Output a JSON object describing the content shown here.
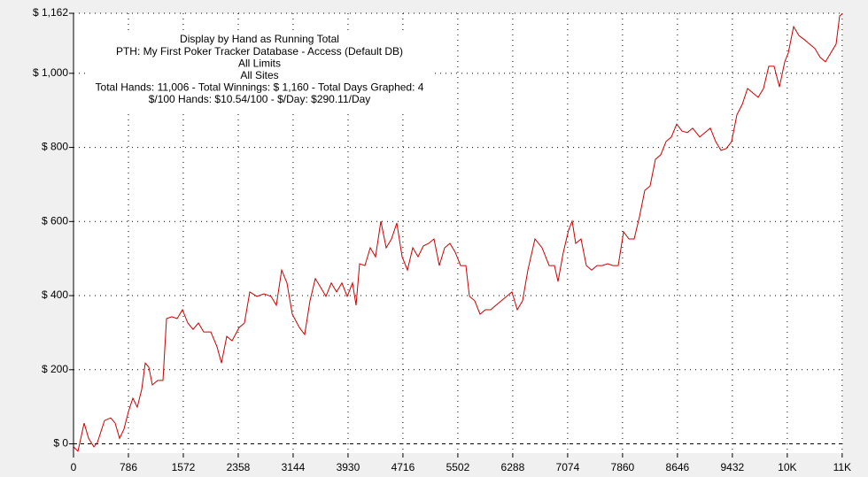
{
  "chart_data": {
    "type": "line",
    "annotations": [
      "Display by Hand as Running Total",
      "PTH: My First Poker Tracker Database - Access (Default DB)",
      "All Limits",
      "All Sites",
      "Total Hands: 11,006 - Total Winnings: $ 1,160 - Total Days Graphed: 4",
      "$/100 Hands: $10.54/100 - $/Day: $290.11/Day"
    ],
    "x": [
      0,
      63,
      152,
      216,
      292,
      342,
      444,
      533,
      596,
      659,
      723,
      786,
      850,
      913,
      976,
      1027,
      1078,
      1129,
      1205,
      1281,
      1331,
      1407,
      1484,
      1560,
      1636,
      1712,
      1788,
      1864,
      1965,
      2054,
      2117,
      2194,
      2270,
      2371,
      2447,
      2523,
      2625,
      2726,
      2828,
      2904,
      2980,
      3056,
      3132,
      3233,
      3309,
      3386,
      3462,
      3538,
      3614,
      3690,
      3766,
      3842,
      3918,
      3994,
      4045,
      4096,
      4172,
      4248,
      4324,
      4400,
      4476,
      4552,
      4628,
      4704,
      4780,
      4856,
      4933,
      5009,
      5085,
      5161,
      5237,
      5313,
      5389,
      5465,
      5541,
      5617,
      5668,
      5744,
      5820,
      5896,
      5972,
      6048,
      6124,
      6201,
      6277,
      6353,
      6429,
      6505,
      6606,
      6708,
      6809,
      6885,
      6936,
      7012,
      7088,
      7139,
      7190,
      7266,
      7342,
      7418,
      7494,
      7570,
      7646,
      7722,
      7798,
      7874,
      7950,
      8026,
      8102,
      8179,
      8255,
      8331,
      8407,
      8483,
      8559,
      8635,
      8711,
      8787,
      8863,
      8965,
      9041,
      9117,
      9193,
      9269,
      9345,
      9421,
      9497,
      9573,
      9649,
      9725,
      9801,
      9877,
      9954,
      10030,
      10106,
      10182,
      10233,
      10309,
      10385,
      10461,
      10537,
      10613,
      10689,
      10765,
      10841,
      10917,
      10968,
      11006
    ],
    "series": [
      {
        "name": "Running Total",
        "color": "#cc0000",
        "values": [
          -8,
          -20,
          56,
          15,
          -8,
          4,
          63,
          70,
          56,
          15,
          40,
          87,
          123,
          99,
          147,
          218,
          207,
          159,
          171,
          171,
          338,
          343,
          338,
          362,
          326,
          309,
          326,
          302,
          302,
          262,
          218,
          290,
          278,
          314,
          326,
          410,
          398,
          405,
          398,
          374,
          469,
          434,
          350,
          314,
          295,
          386,
          446,
          422,
          398,
          434,
          410,
          434,
          398,
          434,
          374,
          486,
          481,
          529,
          505,
          601,
          529,
          553,
          596,
          505,
          469,
          529,
          505,
          534,
          541,
          553,
          481,
          529,
          541,
          517,
          481,
          481,
          398,
          386,
          350,
          362,
          362,
          374,
          386,
          398,
          410,
          362,
          386,
          469,
          553,
          529,
          481,
          481,
          438,
          517,
          577,
          601,
          541,
          553,
          481,
          469,
          481,
          481,
          486,
          481,
          481,
          572,
          553,
          553,
          613,
          684,
          696,
          768,
          780,
          816,
          828,
          863,
          844,
          840,
          852,
          828,
          840,
          852,
          816,
          792,
          797,
          816,
          888,
          916,
          959,
          947,
          935,
          959,
          1019,
          1019,
          963,
          1031,
          1055,
          1126,
          1102,
          1091,
          1079,
          1067,
          1043,
          1031,
          1055,
          1079,
          1155,
          1160
        ]
      }
    ],
    "xlim": [
      0,
      11006
    ],
    "ylim": [
      -25,
      1162
    ],
    "xticks": [
      0,
      786,
      1572,
      2358,
      3144,
      3930,
      4716,
      5502,
      6288,
      7074,
      7860,
      8646,
      9432,
      {
        "value": 10218,
        "label": "10K"
      },
      {
        "value": 11004,
        "label": "11K"
      }
    ],
    "yticks": [
      {
        "value": 0,
        "label": "$ 0"
      },
      {
        "value": 200,
        "label": "$ 200"
      },
      {
        "value": 400,
        "label": "$ 400"
      },
      {
        "value": 600,
        "label": "$ 600"
      },
      {
        "value": 800,
        "label": "$ 800"
      },
      {
        "value": 1000,
        "label": "$ 1,000"
      },
      {
        "value": 1162,
        "label": "$ 1,162"
      }
    ],
    "grid": true
  }
}
